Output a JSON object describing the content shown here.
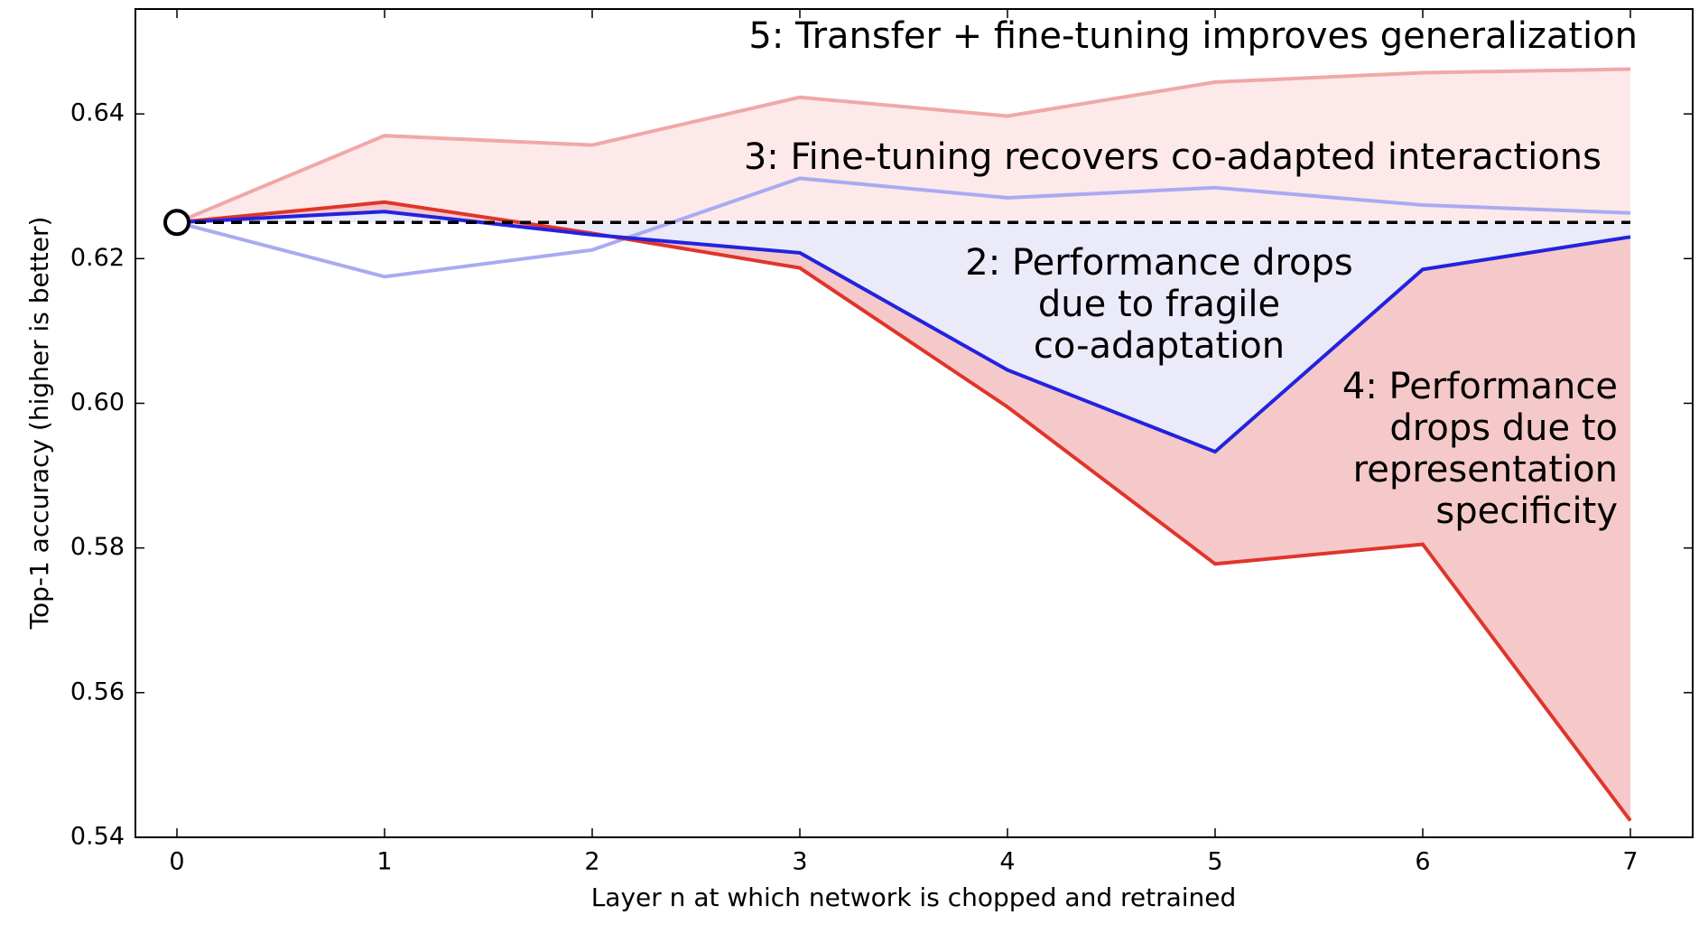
{
  "chart_data": {
    "type": "line",
    "x": [
      0,
      1,
      2,
      3,
      4,
      5,
      6,
      7
    ],
    "series": [
      {
        "color": "#f0a8a8",
        "values": [
          0.625,
          0.637,
          0.6357,
          0.6423,
          0.6397,
          0.6444,
          0.6457,
          0.6462
        ]
      },
      {
        "color": "#aaaaf2",
        "values": [
          0.625,
          0.6175,
          0.6212,
          0.6311,
          0.6284,
          0.6298,
          0.6274,
          0.6263
        ]
      },
      {
        "color": "#e0352b",
        "values": [
          0.625,
          0.6278,
          0.6235,
          0.6187,
          0.5995,
          0.5778,
          0.5805,
          0.5423
        ]
      },
      {
        "color": "#2222e0",
        "values": [
          0.625,
          0.6265,
          0.6233,
          0.6208,
          0.6046,
          0.5933,
          0.6185,
          0.623
        ]
      }
    ],
    "reference": {
      "value": 0.625,
      "color": "#000000",
      "dashed": true
    },
    "fills": [
      {
        "between": [
          0,
          "reference"
        ],
        "color": "#fde9e9"
      },
      {
        "between": [
          3,
          "reference"
        ],
        "color": "#eaeaf8"
      },
      {
        "between": [
          2,
          3
        ],
        "color": "#f5c9c9"
      }
    ],
    "xlabel": "Layer n at which network is chopped and retrained",
    "ylabel": "Top-1 accuracy (higher is better)",
    "xlim": [
      -0.2,
      7.3
    ],
    "ylim": [
      0.54,
      0.6545
    ],
    "xticks": [
      0,
      1,
      2,
      3,
      4,
      5,
      6,
      7
    ],
    "yticks": [
      0.54,
      0.56,
      0.58,
      {
        "value": 0.6,
        "label": "0.60"
      },
      0.62,
      0.64
    ],
    "grid": false,
    "annotations": [
      [
        "5: Transfer + fine-tuning improves generalization"
      ],
      [
        "3: Fine-tuning recovers co-adapted interactions"
      ],
      [
        "2: Performance drops",
        "due to fragile",
        "co-adaptation"
      ],
      [
        "4: Performance",
        "drops due to",
        "representation",
        "specificity"
      ]
    ]
  }
}
